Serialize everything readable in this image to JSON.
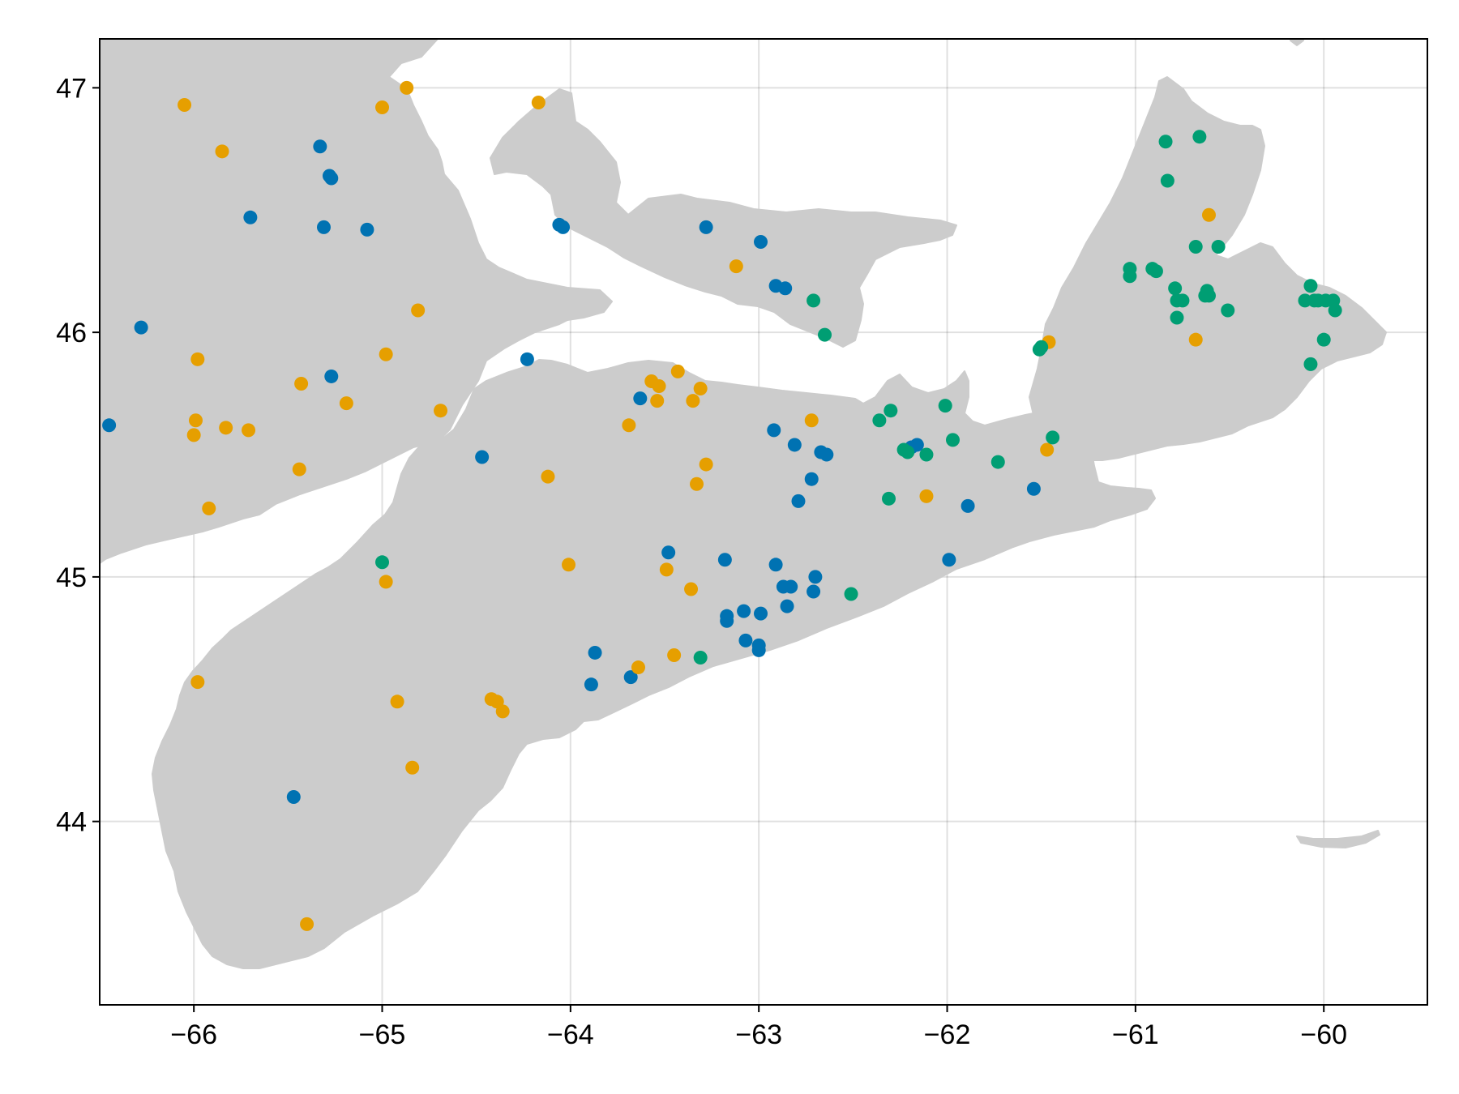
{
  "chart_data": {
    "type": "scatter",
    "title": "",
    "xlabel": "",
    "ylabel": "",
    "xlim": [
      -66.5,
      -59.45
    ],
    "ylim": [
      43.25,
      47.2
    ],
    "grid": true,
    "xticks": [
      -66,
      -65,
      -64,
      -63,
      -62,
      -61,
      -60
    ],
    "xtick_labels": [
      "−66",
      "−65",
      "−64",
      "−63",
      "−62",
      "−61",
      "−60"
    ],
    "yticks": [
      44,
      45,
      46,
      47
    ],
    "ytick_labels": [
      "44",
      "45",
      "46",
      "47"
    ],
    "land_color": "#cccccc",
    "series": [
      {
        "color": "#0072b2",
        "points": [
          [
            -66.45,
            45.62
          ],
          [
            -66.28,
            46.02
          ],
          [
            -65.7,
            46.47
          ],
          [
            -65.33,
            46.76
          ],
          [
            -65.28,
            46.64
          ],
          [
            -65.27,
            46.63
          ],
          [
            -65.31,
            46.43
          ],
          [
            -65.08,
            46.42
          ],
          [
            -65.27,
            45.82
          ],
          [
            -65.47,
            44.1
          ],
          [
            -64.47,
            45.49
          ],
          [
            -64.23,
            45.89
          ],
          [
            -64.06,
            46.44
          ],
          [
            -64.04,
            46.43
          ],
          [
            -63.28,
            46.43
          ],
          [
            -62.99,
            46.37
          ],
          [
            -62.91,
            46.19
          ],
          [
            -62.86,
            46.18
          ],
          [
            -63.63,
            45.73
          ],
          [
            -62.92,
            45.6
          ],
          [
            -62.81,
            45.54
          ],
          [
            -62.67,
            45.51
          ],
          [
            -62.64,
            45.5
          ],
          [
            -62.72,
            45.4
          ],
          [
            -62.79,
            45.31
          ],
          [
            -62.19,
            45.53
          ],
          [
            -62.16,
            45.54
          ],
          [
            -61.89,
            45.29
          ],
          [
            -61.54,
            45.36
          ],
          [
            -61.99,
            45.07
          ],
          [
            -63.48,
            45.1
          ],
          [
            -63.18,
            45.07
          ],
          [
            -62.91,
            45.05
          ],
          [
            -62.7,
            45.0
          ],
          [
            -62.87,
            44.96
          ],
          [
            -62.83,
            44.96
          ],
          [
            -62.71,
            44.94
          ],
          [
            -62.85,
            44.88
          ],
          [
            -63.08,
            44.86
          ],
          [
            -62.99,
            44.85
          ],
          [
            -63.17,
            44.84
          ],
          [
            -63.17,
            44.82
          ],
          [
            -63.07,
            44.74
          ],
          [
            -63.0,
            44.72
          ],
          [
            -63.0,
            44.7
          ],
          [
            -63.87,
            44.69
          ],
          [
            -63.68,
            44.59
          ],
          [
            -63.89,
            44.56
          ]
        ]
      },
      {
        "color": "#e69f00",
        "points": [
          [
            -66.05,
            46.93
          ],
          [
            -65.85,
            46.74
          ],
          [
            -65.0,
            46.92
          ],
          [
            -64.87,
            47.0
          ],
          [
            -64.17,
            46.94
          ],
          [
            -63.12,
            46.27
          ],
          [
            -64.81,
            46.09
          ],
          [
            -65.98,
            45.89
          ],
          [
            -64.98,
            45.91
          ],
          [
            -65.43,
            45.79
          ],
          [
            -65.19,
            45.71
          ],
          [
            -64.69,
            45.68
          ],
          [
            -65.99,
            45.64
          ],
          [
            -65.83,
            45.61
          ],
          [
            -65.71,
            45.6
          ],
          [
            -66.0,
            45.58
          ],
          [
            -65.44,
            45.44
          ],
          [
            -65.92,
            45.28
          ],
          [
            -63.43,
            45.84
          ],
          [
            -63.57,
            45.8
          ],
          [
            -63.53,
            45.78
          ],
          [
            -63.31,
            45.77
          ],
          [
            -63.54,
            45.72
          ],
          [
            -63.35,
            45.72
          ],
          [
            -63.69,
            45.62
          ],
          [
            -62.72,
            45.64
          ],
          [
            -63.28,
            45.46
          ],
          [
            -63.33,
            45.38
          ],
          [
            -64.12,
            45.41
          ],
          [
            -62.11,
            45.33
          ],
          [
            -61.47,
            45.52
          ],
          [
            -61.46,
            45.96
          ],
          [
            -60.68,
            45.97
          ],
          [
            -60.61,
            46.48
          ],
          [
            -64.01,
            45.05
          ],
          [
            -63.49,
            45.03
          ],
          [
            -64.98,
            44.98
          ],
          [
            -63.36,
            44.95
          ],
          [
            -63.45,
            44.68
          ],
          [
            -63.64,
            44.63
          ],
          [
            -65.98,
            44.57
          ],
          [
            -64.92,
            44.49
          ],
          [
            -64.42,
            44.5
          ],
          [
            -64.39,
            44.49
          ],
          [
            -64.36,
            44.45
          ],
          [
            -64.84,
            44.22
          ],
          [
            -65.4,
            43.58
          ]
        ]
      },
      {
        "color": "#009e73",
        "points": [
          [
            -60.84,
            46.78
          ],
          [
            -60.66,
            46.8
          ],
          [
            -60.83,
            46.62
          ],
          [
            -60.68,
            46.35
          ],
          [
            -60.56,
            46.35
          ],
          [
            -61.03,
            46.26
          ],
          [
            -60.91,
            46.26
          ],
          [
            -60.89,
            46.25
          ],
          [
            -61.03,
            46.23
          ],
          [
            -60.79,
            46.18
          ],
          [
            -60.78,
            46.13
          ],
          [
            -60.75,
            46.13
          ],
          [
            -60.62,
            46.17
          ],
          [
            -60.63,
            46.15
          ],
          [
            -60.61,
            46.15
          ],
          [
            -60.51,
            46.09
          ],
          [
            -60.78,
            46.06
          ],
          [
            -62.71,
            46.13
          ],
          [
            -62.65,
            45.99
          ],
          [
            -60.07,
            46.19
          ],
          [
            -60.1,
            46.13
          ],
          [
            -60.05,
            46.13
          ],
          [
            -60.03,
            46.13
          ],
          [
            -59.99,
            46.13
          ],
          [
            -59.95,
            46.13
          ],
          [
            -59.94,
            46.09
          ],
          [
            -60.0,
            45.97
          ],
          [
            -60.07,
            45.87
          ],
          [
            -61.5,
            45.94
          ],
          [
            -61.51,
            45.93
          ],
          [
            -62.01,
            45.7
          ],
          [
            -62.3,
            45.68
          ],
          [
            -62.36,
            45.64
          ],
          [
            -61.44,
            45.57
          ],
          [
            -61.97,
            45.56
          ],
          [
            -62.23,
            45.52
          ],
          [
            -62.21,
            45.51
          ],
          [
            -62.11,
            45.5
          ],
          [
            -61.73,
            45.47
          ],
          [
            -62.31,
            45.32
          ],
          [
            -62.51,
            44.93
          ],
          [
            -63.31,
            44.67
          ],
          [
            -65.0,
            45.06
          ]
        ]
      }
    ]
  }
}
